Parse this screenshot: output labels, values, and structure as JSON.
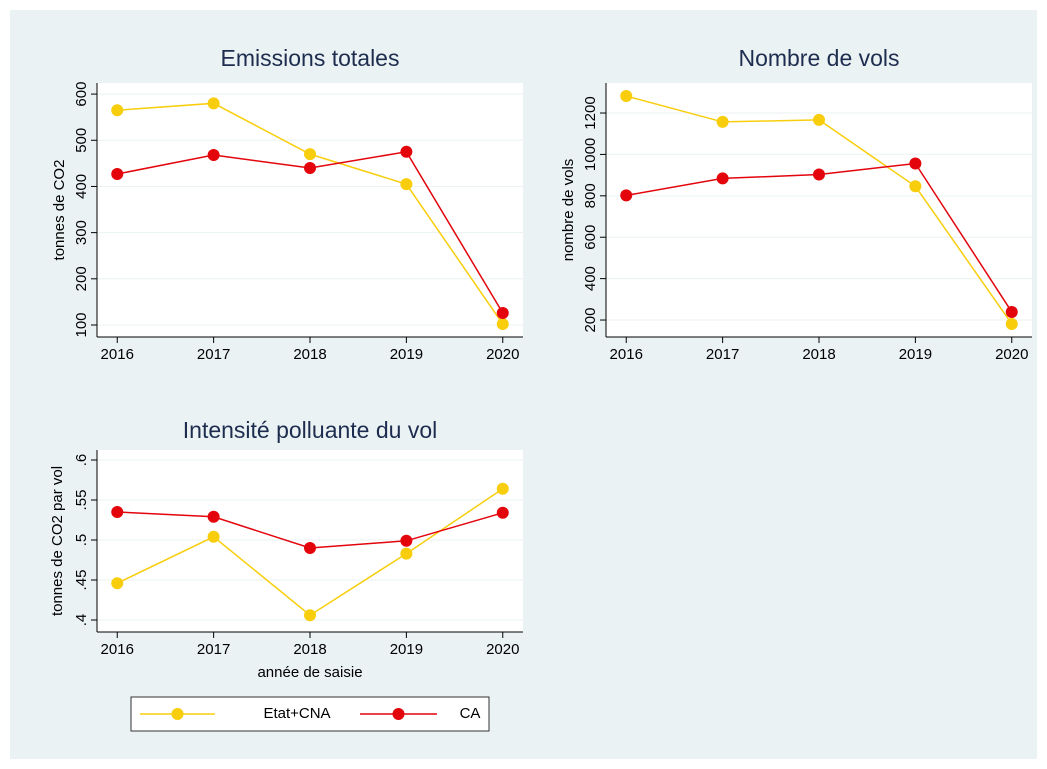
{
  "chart_data": [
    {
      "type": "line",
      "title": "Emissions totales",
      "ylabel": "tonnes de CO2",
      "x": [
        2016,
        2017,
        2018,
        2019,
        2020
      ],
      "xlim": [
        2015.79,
        2020.21
      ],
      "xticks": [
        2016,
        2017,
        2018,
        2019,
        2020
      ],
      "ylim": [
        74,
        624
      ],
      "yticks": [
        100,
        200,
        300,
        400,
        500,
        600
      ],
      "grid": true,
      "series": [
        {
          "name": "Etat+CNA",
          "color": "#f8ce0c",
          "values": [
            565,
            580,
            470,
            405,
            102
          ]
        },
        {
          "name": "CA",
          "color": "#e3040c",
          "values": [
            427,
            468,
            440,
            475,
            126
          ]
        }
      ]
    },
    {
      "type": "line",
      "title": "Nombre de vols",
      "ylabel": "nombre de vols",
      "x": [
        2016,
        2017,
        2018,
        2019,
        2020
      ],
      "xlim": [
        2015.79,
        2020.21
      ],
      "xticks": [
        2016,
        2017,
        2018,
        2019,
        2020
      ],
      "ylim": [
        118,
        1345
      ],
      "yticks": [
        200,
        400,
        600,
        800,
        1000,
        1200
      ],
      "grid": true,
      "series": [
        {
          "name": "Etat+CNA",
          "color": "#f8ce0c",
          "values": [
            1282,
            1157,
            1167,
            846,
            181
          ]
        },
        {
          "name": "CA",
          "color": "#e3040c",
          "values": [
            802,
            884,
            903,
            956,
            239
          ]
        }
      ]
    },
    {
      "type": "line",
      "title": "Intensité polluante du vol",
      "ylabel": "tonnes de CO2 par vol",
      "xlabel": "année de saisie",
      "x": [
        2016,
        2017,
        2018,
        2019,
        2020
      ],
      "xlim": [
        2015.79,
        2020.21
      ],
      "xticks": [
        2016,
        2017,
        2018,
        2019,
        2020
      ],
      "ylim": [
        0.385,
        0.6125
      ],
      "yticks": [
        {
          "value": 0.4,
          "label": ".4"
        },
        {
          "value": 0.45,
          "label": ".45"
        },
        {
          "value": 0.5,
          "label": ".5"
        },
        {
          "value": 0.55,
          "label": ".55"
        },
        {
          "value": 0.6,
          "label": ".6"
        }
      ],
      "grid": true,
      "series": [
        {
          "name": "Etat+CNA",
          "color": "#f8ce0c",
          "values": [
            0.446,
            0.504,
            0.406,
            0.483,
            0.564
          ]
        },
        {
          "name": "CA",
          "color": "#e3040c",
          "values": [
            0.535,
            0.529,
            0.49,
            0.499,
            0.534
          ]
        }
      ]
    }
  ]
}
